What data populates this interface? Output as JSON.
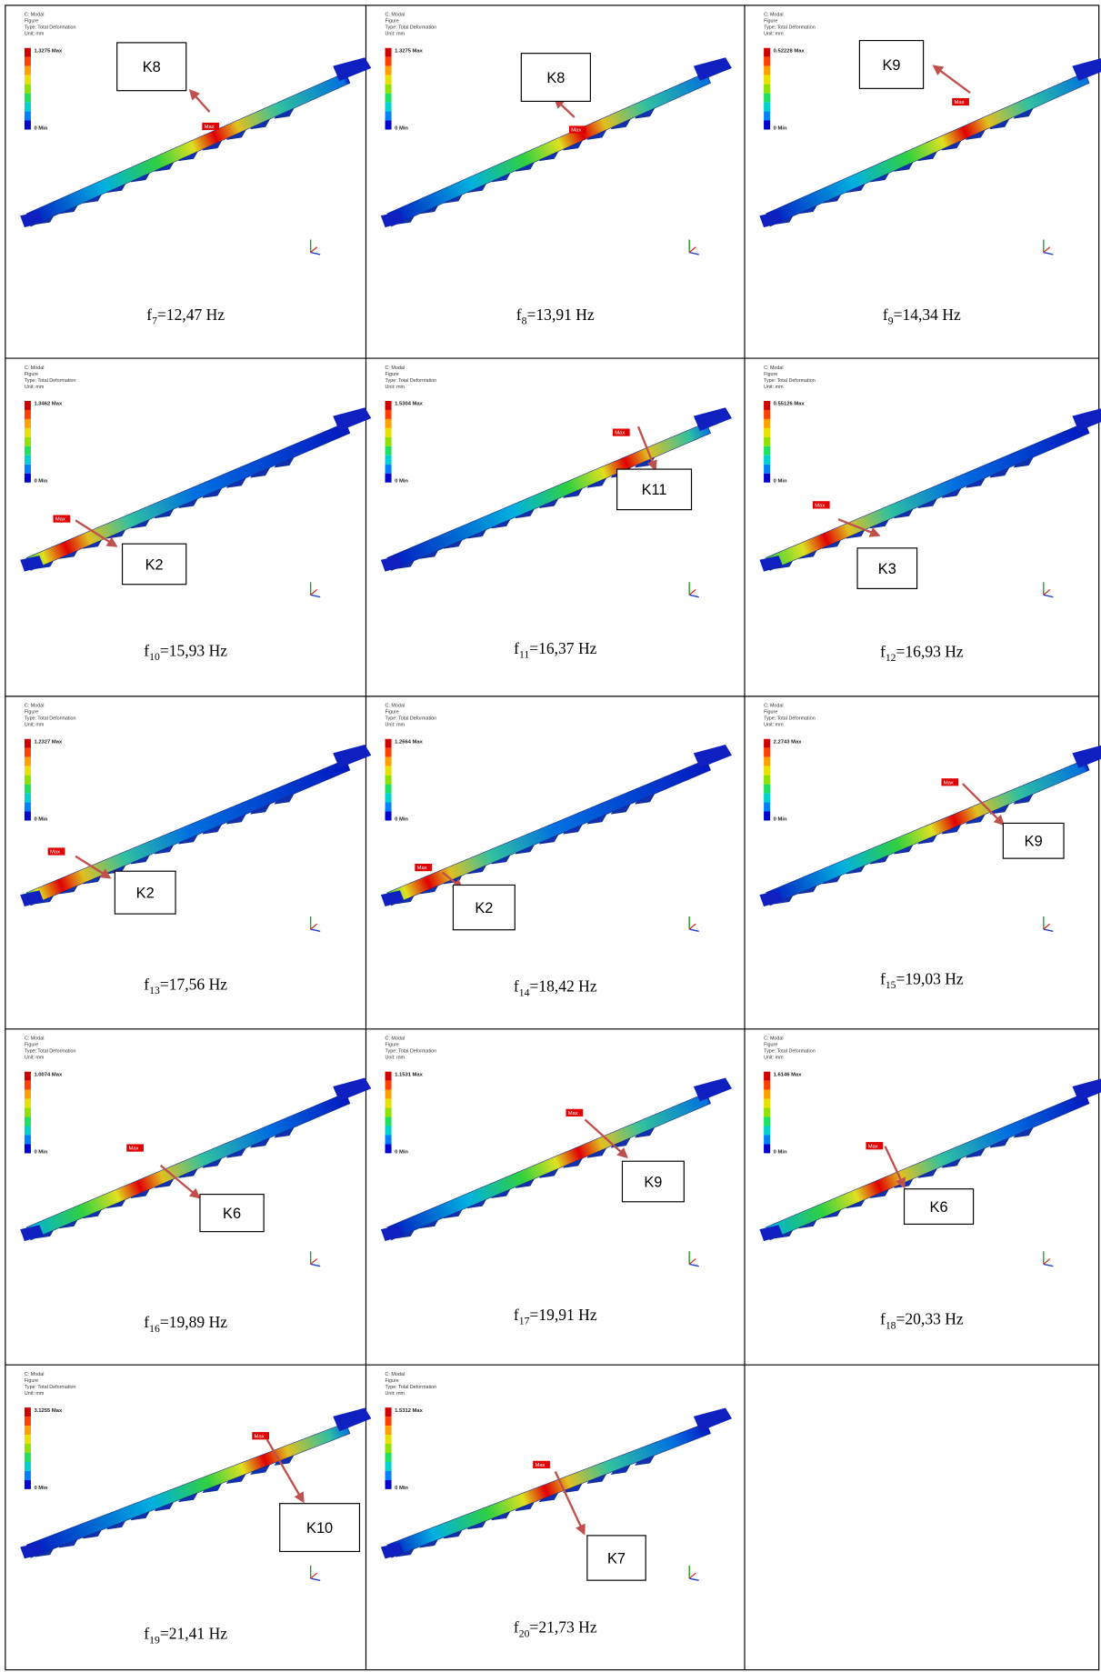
{
  "header_lines": [
    "C: Modal",
    "Figure",
    "Type: Total Deformation",
    "Unit: mm"
  ],
  "min_legend": "0 Min",
  "max_tag": "Max",
  "panels": [
    {
      "label": "K8",
      "max_legend": "1.3275 Max",
      "caption": {
        "symbol": "f",
        "index": "7",
        "text": "=12,47 Hz"
      }
    },
    {
      "label": "K8",
      "max_legend": "1.3275 Max",
      "caption": {
        "symbol": "f",
        "index": "8",
        "text": "=13,91 Hz"
      }
    },
    {
      "label": "K9",
      "max_legend": "0.52228 Max",
      "caption": {
        "symbol": "f",
        "index": "9",
        "text": "=14,34 Hz"
      }
    },
    {
      "label": "K2",
      "max_legend": "1.3462 Max",
      "caption": {
        "symbol": "f",
        "index": "10",
        "text": "=15,93 Hz"
      }
    },
    {
      "label": "K11",
      "max_legend": "1.5304 Max",
      "caption": {
        "symbol": "f",
        "index": "11",
        "text": "=16,37 Hz"
      }
    },
    {
      "label": "K3",
      "max_legend": "0.55126 Max",
      "caption": {
        "symbol": "f",
        "index": "12",
        "text": "=16,93 Hz"
      }
    },
    {
      "label": "K2",
      "max_legend": "1.2327 Max",
      "caption": {
        "symbol": "f",
        "index": "13",
        "text": "=17,56 Hz"
      }
    },
    {
      "label": "K2",
      "max_legend": "1.2664 Max",
      "caption": {
        "symbol": "f",
        "index": "14",
        "text": "=18,42 Hz"
      }
    },
    {
      "label": "K9",
      "max_legend": "2.2743 Max",
      "caption": {
        "symbol": "f",
        "index": "15",
        "text": "=19,03 Hz"
      }
    },
    {
      "label": "K6",
      "max_legend": "1.0074 Max",
      "caption": {
        "symbol": "f",
        "index": "16",
        "text": "=19,89 Hz"
      }
    },
    {
      "label": "K9",
      "max_legend": "1.1531 Max",
      "caption": {
        "symbol": "f",
        "index": "17",
        "text": "=19,91 Hz"
      }
    },
    {
      "label": "K6",
      "max_legend": "1.6146 Max",
      "caption": {
        "symbol": "f",
        "index": "18",
        "text": "=20,33 Hz"
      }
    },
    {
      "label": "K10",
      "max_legend": "3.1255 Max",
      "caption": {
        "symbol": "f",
        "index": "19",
        "text": "=21,41 Hz"
      }
    },
    {
      "label": "K7",
      "max_legend": "1.5312 Max",
      "caption": {
        "symbol": "f",
        "index": "20",
        "text": "=21,73 Hz"
      }
    }
  ]
}
